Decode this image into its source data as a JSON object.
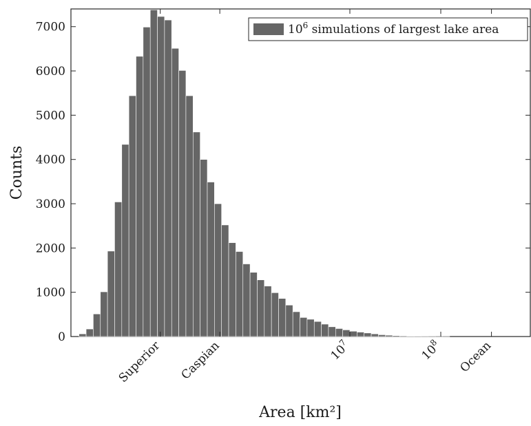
{
  "chart_data": {
    "type": "bar",
    "title": "",
    "xlabel": "Area [km²]",
    "ylabel": "Counts",
    "x_scale": "log",
    "ylim": [
      0,
      7400
    ],
    "yticks": [
      0,
      1000,
      2000,
      3000,
      4000,
      5000,
      6000,
      7000
    ],
    "xtick_labels": [
      {
        "text": "Superior",
        "x": 82100
      },
      {
        "text": "Caspian",
        "x": 371000
      },
      {
        "text": "10",
        "sup": "7",
        "x": 10000000
      },
      {
        "text": "10",
        "sup": "8",
        "x": 100000000
      },
      {
        "text": "Ocean",
        "x": 361000000
      }
    ],
    "legend": {
      "text": "10",
      "sup": "6",
      "rest": " simulations of largest lake area",
      "position": "top-right"
    },
    "bar_color": "#666666",
    "series": [
      {
        "values": [
          60,
          170,
          510,
          1010,
          1930,
          3040,
          4340,
          5440,
          6330,
          6990,
          7380,
          7230,
          7150,
          6510,
          6010,
          5440,
          4620,
          4000,
          3490,
          3000,
          2520,
          2120,
          1920,
          1640,
          1450,
          1280,
          1140,
          990,
          860,
          710,
          560,
          430,
          390,
          340,
          280,
          220,
          180,
          150,
          120,
          100,
          80,
          60,
          40,
          30,
          20,
          15,
          10,
          5,
          3,
          2,
          1,
          1,
          0,
          0,
          0,
          0,
          0,
          0,
          0,
          0
        ]
      }
    ]
  }
}
